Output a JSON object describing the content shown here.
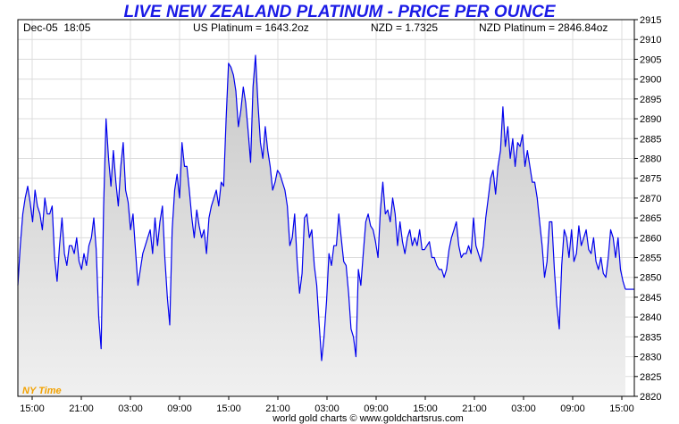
{
  "chart_data": {
    "type": "area",
    "title": "LIVE NEW ZEALAND PLATINUM - PRICE PER OUNCE",
    "header": {
      "datetime": "Dec-05  18:05",
      "us_price": "US Platinum = 1643.2oz",
      "fx_rate": "NZD = 1.7325",
      "nzd_price": "NZD Platinum = 2846.84oz"
    },
    "timezone_label": "NY Time",
    "footer": "world gold charts © www.goldchartsrus.com",
    "ylim": [
      2820,
      2915
    ],
    "y_ticks": [
      2820,
      2825,
      2830,
      2835,
      2840,
      2845,
      2850,
      2855,
      2860,
      2865,
      2870,
      2875,
      2880,
      2885,
      2890,
      2895,
      2900,
      2905,
      2910,
      2915
    ],
    "x_ticks": [
      "15:00",
      "21:00",
      "03:00",
      "09:00",
      "15:00",
      "21:00",
      "03:00",
      "09:00",
      "15:00",
      "21:00",
      "03:00",
      "09:00",
      "15:00"
    ],
    "grid": true,
    "colors": {
      "line": "#0000ee",
      "fill": "#e2e2e2",
      "title": "#1a1ae6",
      "timezone": "#f2a100",
      "grid": "#dcdcdc"
    },
    "series": [
      {
        "values": [
          2848,
          2858,
          2866,
          2870,
          2873,
          2869,
          2864,
          2872,
          2868,
          2866,
          2862,
          2870,
          2866,
          2866,
          2868,
          2855,
          2849,
          2858,
          2865,
          2856,
          2853,
          2858,
          2858,
          2856,
          2860,
          2854,
          2852,
          2856,
          2853,
          2858,
          2860,
          2865,
          2857,
          2840,
          2832,
          2868,
          2890,
          2880,
          2873,
          2882,
          2874,
          2868,
          2878,
          2884,
          2872,
          2869,
          2862,
          2866,
          2857,
          2848,
          2852,
          2856,
          2858,
          2860,
          2862,
          2856,
          2865,
          2858,
          2864,
          2868,
          2855,
          2845,
          2838,
          2862,
          2872,
          2876,
          2870,
          2884,
          2878,
          2878,
          2872,
          2865,
          2860,
          2867,
          2863,
          2860,
          2862,
          2856,
          2865,
          2868,
          2870,
          2872,
          2868,
          2874,
          2873,
          2890,
          2904,
          2903,
          2901,
          2897,
          2888,
          2892,
          2898,
          2894,
          2887,
          2879,
          2898,
          2906,
          2894,
          2884,
          2880,
          2888,
          2882,
          2878,
          2872,
          2874,
          2877,
          2876,
          2874,
          2872,
          2868,
          2858,
          2860,
          2866,
          2854,
          2846,
          2851,
          2865,
          2866,
          2860,
          2862,
          2853,
          2848,
          2838,
          2829,
          2835,
          2844,
          2856,
          2853,
          2858,
          2858,
          2866,
          2860,
          2854,
          2853,
          2846,
          2837,
          2835,
          2830,
          2852,
          2848,
          2856,
          2864,
          2866,
          2863,
          2862,
          2859,
          2855,
          2867,
          2874,
          2866,
          2867,
          2864,
          2870,
          2866,
          2858,
          2864,
          2859,
          2856,
          2860,
          2862,
          2858,
          2860,
          2858,
          2862,
          2857,
          2857,
          2858,
          2859,
          2855,
          2855,
          2853,
          2852,
          2852,
          2850,
          2852,
          2857,
          2860,
          2862,
          2864,
          2858,
          2855,
          2856,
          2856,
          2858,
          2856,
          2865,
          2858,
          2856,
          2854,
          2858,
          2865,
          2870,
          2875,
          2877,
          2871,
          2878,
          2882,
          2893,
          2883,
          2888,
          2880,
          2885,
          2878,
          2884,
          2883,
          2886,
          2878,
          2882,
          2878,
          2874,
          2874,
          2870,
          2864,
          2858,
          2850,
          2854,
          2864,
          2864,
          2852,
          2843,
          2837,
          2853,
          2862,
          2860,
          2855,
          2862,
          2854,
          2856,
          2863,
          2858,
          2860,
          2862,
          2857,
          2856,
          2860,
          2854,
          2852,
          2855,
          2851,
          2850,
          2855,
          2862,
          2860,
          2855,
          2860,
          2852,
          2849,
          2847
        ]
      }
    ]
  }
}
